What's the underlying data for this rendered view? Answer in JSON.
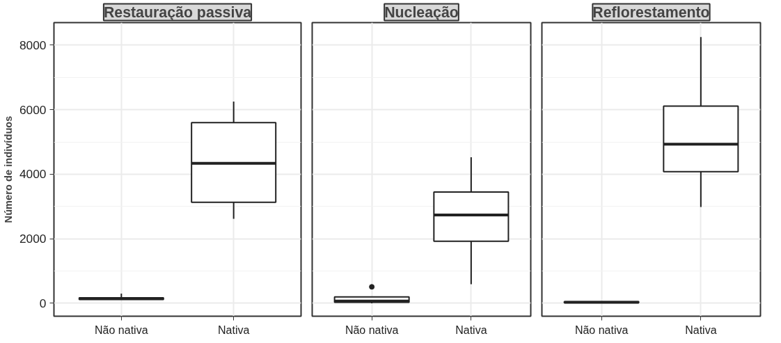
{
  "chart_data": [
    {
      "type": "box",
      "title": "Restauração passiva",
      "ylabel": "Número de indivíduos",
      "categories": [
        "Não nativa",
        "Nativa"
      ],
      "boxes": [
        {
          "low": 120,
          "q1": 120,
          "median": 150,
          "q3": 170,
          "high": 300
        },
        {
          "low": 2620,
          "q1": 3130,
          "median": 4340,
          "q3": 5600,
          "high": 6250
        }
      ],
      "ylim": [
        -400,
        8700
      ],
      "yticks": [
        0,
        2000,
        4000,
        6000,
        8000
      ],
      "grid": true
    },
    {
      "type": "box",
      "title": "Nucleação",
      "categories": [
        "Não nativa",
        "Nativa"
      ],
      "boxes": [
        {
          "low": 0,
          "q1": 30,
          "median": 70,
          "q3": 200,
          "high": 200,
          "outliers": [
            510
          ]
        },
        {
          "low": 590,
          "q1": 1925,
          "median": 2740,
          "q3": 3450,
          "high": 4530
        }
      ],
      "ylim": [
        -400,
        8700
      ],
      "yticks": [
        0,
        2000,
        4000,
        6000,
        8000
      ],
      "grid": true,
      "tick_labels": "x"
    },
    {
      "type": "box",
      "title": "Reflorestamento",
      "categories": [
        "Não nativa",
        "Nativa"
      ],
      "boxes": [
        {
          "low": 20,
          "q1": 20,
          "median": 30,
          "q3": 50,
          "high": 50
        },
        {
          "low": 2985,
          "q1": 4080,
          "median": 4930,
          "q3": 6115,
          "high": 8255
        }
      ],
      "ylim": [
        -400,
        8700
      ],
      "yticks": [
        0,
        2000,
        4000,
        6000,
        8000
      ],
      "grid": true,
      "tick_labels": "x"
    }
  ]
}
